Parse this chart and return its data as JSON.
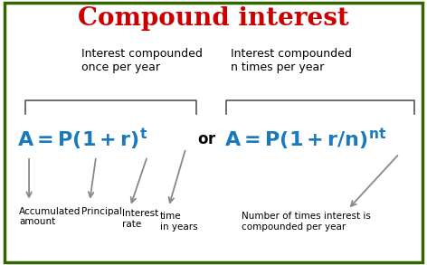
{
  "title": "Compound interest",
  "title_color": "#cc0000",
  "title_fontsize": 20,
  "bg_color": "#ffffff",
  "border_color": "#336600",
  "border_linewidth": 2.5,
  "formula1_color": "#1a7abf",
  "label_once": "Interest compounded\nonce per year",
  "label_n": "Interest compounded\nn times per year",
  "label_color": "#000000",
  "label_fontsize": 9,
  "annot_A": "Accumulated\namount",
  "annot_P": "Principal",
  "annot_r": "Interest\nrate",
  "annot_t": "time\nin years",
  "annot_n": "Number of times interest is\ncompounded per year",
  "annot_color": "#000000",
  "annot_fontsize": 7.5,
  "arrow_color": "#888888",
  "formula_fontsize": 16,
  "or_fontsize": 12
}
